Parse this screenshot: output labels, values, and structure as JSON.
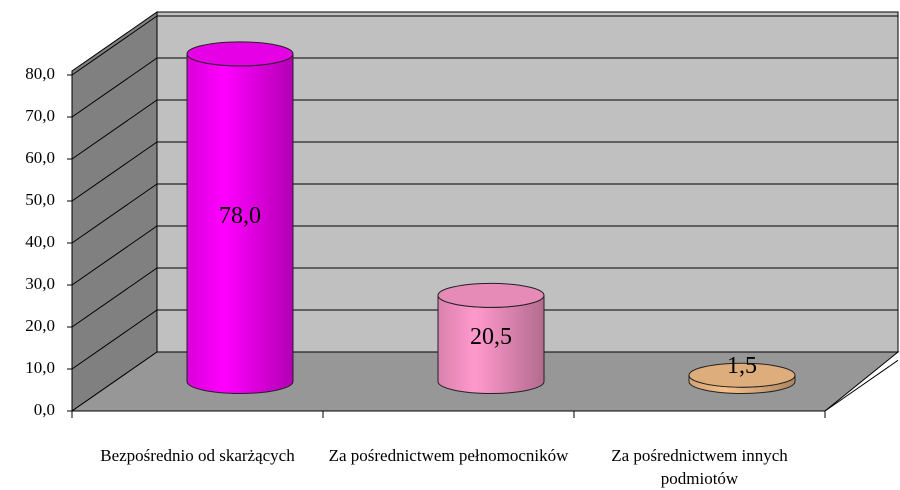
{
  "chart_data": {
    "type": "cylinder",
    "categories": [
      "Bezpośrednio od skarżących",
      "Za pośrednictwem pełnomocników",
      "Za pośrednictwem innych podmiotów"
    ],
    "values": [
      78.0,
      20.5,
      1.5
    ],
    "value_labels": [
      "78,0",
      "20,5",
      "1,5"
    ],
    "colors": [
      "#ff00ff",
      "#ff99cc",
      "#f5c08a"
    ],
    "ylim": [
      0,
      80
    ],
    "yticks": [
      {
        "value": 0,
        "label": "0,0"
      },
      {
        "value": 10,
        "label": "10,0"
      },
      {
        "value": 20,
        "label": "20,0"
      },
      {
        "value": 30,
        "label": "30,0"
      },
      {
        "value": 40,
        "label": "40,0"
      },
      {
        "value": 50,
        "label": "50,0"
      },
      {
        "value": 60,
        "label": "60,0"
      },
      {
        "value": 70,
        "label": "70,0"
      },
      {
        "value": 80,
        "label": "80,0"
      }
    ],
    "grid": true
  }
}
